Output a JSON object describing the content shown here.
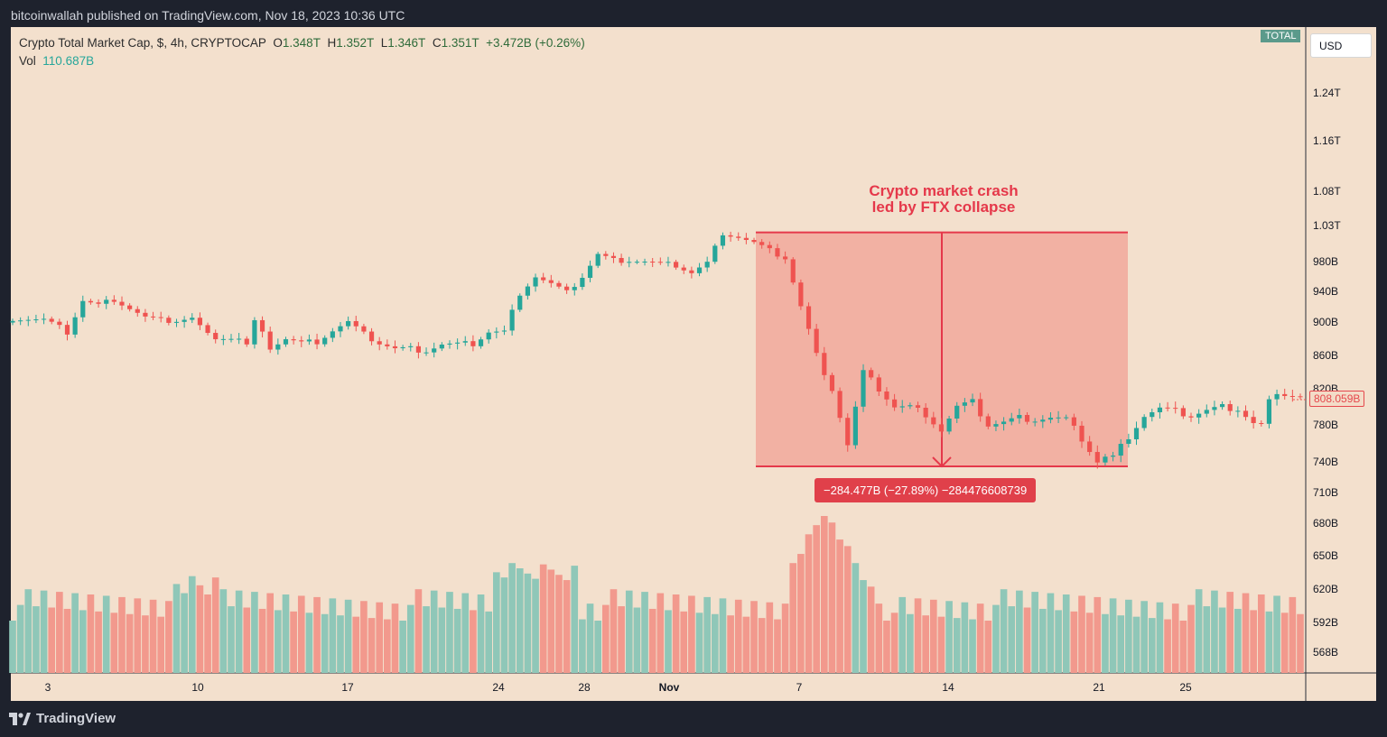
{
  "header": {
    "publisher_line": "bitcoinwallah published on TradingView.com, Nov 18, 2023 10:36 UTC"
  },
  "footer": {
    "brand": "TradingView"
  },
  "legend": {
    "symbol": "Crypto Total Market Cap, $, 4h, CRYPTOCAP",
    "o_label": "O",
    "o": "1.348T",
    "h_label": "H",
    "h": "1.352T",
    "l_label": "L",
    "l": "1.346T",
    "c_label": "C",
    "c": "1.351T",
    "change": "+3.472B (+0.26%)",
    "vol_label": "Vol",
    "vol": "110.687B"
  },
  "controls": {
    "currency": "USD",
    "total_badge": "TOTAL"
  },
  "last_price": "808.059B",
  "annotation": {
    "line1": "Crypto market crash",
    "line2": "led by FTX collapse"
  },
  "measure": {
    "label": "−284.477B (−27.89%) −284476608739"
  },
  "colors": {
    "background": "#f3e0cd",
    "up": "#26a69a",
    "down": "#ef5350",
    "annotation": "#e5384a",
    "range_fill": "rgba(239,83,80,0.33)",
    "vol_up": "#8fc7b8",
    "vol_down": "#f2998d"
  },
  "chart_data": {
    "type": "candlestick",
    "timeframe": "4h",
    "x_ticks": [
      "3",
      "10",
      "17",
      "24",
      "28",
      "Nov",
      "7",
      "14",
      "21",
      "25"
    ],
    "y_ticks": [
      "1.24T",
      "1.16T",
      "1.08T",
      "1.03T",
      "980B",
      "940B",
      "900B",
      "860B",
      "820B",
      "780B",
      "740B",
      "710B",
      "680B",
      "650B",
      "620B",
      "592B",
      "568B"
    ],
    "price_path_billions": [
      [
        0,
        905
      ],
      [
        4,
        903
      ],
      [
        7,
        888
      ],
      [
        9,
        928
      ],
      [
        11,
        922
      ],
      [
        13,
        930
      ],
      [
        15,
        918
      ],
      [
        17,
        906
      ],
      [
        19,
        902
      ],
      [
        21,
        902
      ],
      [
        23,
        905
      ],
      [
        25,
        884
      ],
      [
        27,
        882
      ],
      [
        29,
        880
      ],
      [
        30,
        872
      ],
      [
        31,
        900
      ],
      [
        33,
        870
      ],
      [
        35,
        880
      ],
      [
        37,
        875
      ],
      [
        39,
        877
      ],
      [
        41,
        890
      ],
      [
        43,
        900
      ],
      [
        45,
        885
      ],
      [
        47,
        875
      ],
      [
        49,
        868
      ],
      [
        51,
        868
      ],
      [
        53,
        866
      ],
      [
        55,
        873
      ],
      [
        57,
        873
      ],
      [
        59,
        874
      ],
      [
        61,
        888
      ],
      [
        63,
        888
      ],
      [
        65,
        938
      ],
      [
        67,
        960
      ],
      [
        69,
        950
      ],
      [
        71,
        938
      ],
      [
        73,
        960
      ],
      [
        75,
        990
      ],
      [
        77,
        982
      ],
      [
        79,
        982
      ],
      [
        81,
        980
      ],
      [
        83,
        977
      ],
      [
        85,
        975
      ],
      [
        87,
        965
      ],
      [
        89,
        978
      ],
      [
        91,
        1020
      ],
      [
        93,
        1014
      ],
      [
        95,
        1006
      ],
      [
        97,
        995
      ],
      [
        99,
        985
      ],
      [
        101,
        920
      ],
      [
        103,
        860
      ],
      [
        105,
        820
      ],
      [
        107,
        758
      ],
      [
        109,
        840
      ],
      [
        111,
        820
      ],
      [
        113,
        800
      ],
      [
        115,
        800
      ],
      [
        117,
        792
      ],
      [
        119,
        774
      ],
      [
        121,
        800
      ],
      [
        123,
        805
      ],
      [
        125,
        780
      ],
      [
        127,
        783
      ],
      [
        129,
        788
      ],
      [
        131,
        786
      ],
      [
        133,
        788
      ],
      [
        135,
        786
      ],
      [
        137,
        765
      ],
      [
        139,
        740
      ],
      [
        140,
        745
      ],
      [
        141,
        745
      ],
      [
        143,
        768
      ],
      [
        145,
        790
      ],
      [
        147,
        798
      ],
      [
        149,
        795
      ],
      [
        151,
        790
      ],
      [
        153,
        796
      ],
      [
        155,
        800
      ],
      [
        157,
        798
      ],
      [
        159,
        782
      ],
      [
        160,
        780
      ],
      [
        161,
        806
      ],
      [
        163,
        815
      ],
      [
        165,
        812
      ]
    ],
    "total_candles": 166,
    "volume": {
      "unit": "relative",
      "description": "per-4h volume bars, peak during crash around Nov 8-9"
    },
    "measurement": {
      "from": "1.0205T",
      "to": "736B",
      "change": "−284.477B",
      "change_pct": "−27.89%"
    }
  }
}
